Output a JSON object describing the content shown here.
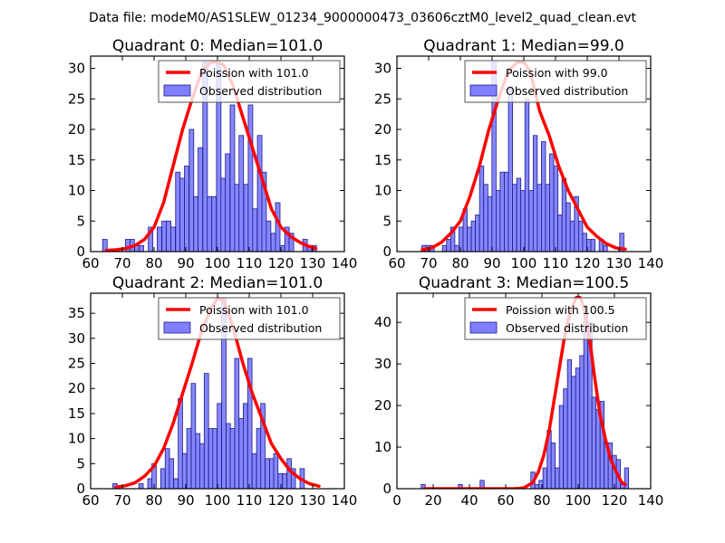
{
  "figure": {
    "suptitle": "Data file: modeM0/AS1SLEW_01234_9000000473_03606cztM0_level2_quad_clean.evt"
  },
  "colors": {
    "bar_fill": "#7f7fff",
    "bar_edge": "#1c1c8a",
    "poisson_line": "#ff0000",
    "legend_edge": "#555555"
  },
  "chart_data": [
    {
      "type": "bar",
      "title": "Quadrant 0: Median=101.0",
      "xlabel": "",
      "ylabel": "",
      "xlim": [
        60,
        140
      ],
      "ylim": [
        0,
        32
      ],
      "xticks": [
        60,
        70,
        80,
        90,
        100,
        110,
        120,
        130,
        140
      ],
      "yticks": [
        0,
        5,
        10,
        15,
        20,
        25,
        30
      ],
      "legend": {
        "placement": "top-right",
        "entries": [
          "Poission with 101.0",
          "Observed distribution"
        ]
      },
      "bin_width": 1.43,
      "bars": {
        "x": [
          64.5,
          66,
          67.4,
          68.8,
          70.3,
          71.7,
          73.1,
          74.6,
          76,
          77.4,
          78.9,
          80.3,
          81.7,
          83.2,
          84.6,
          86,
          87.5,
          88.9,
          90.3,
          91.8,
          93.2,
          94.6,
          96.1,
          97.5,
          98.9,
          100.4,
          101.8,
          103.2,
          104.7,
          106.1,
          107.5,
          109,
          110.4,
          111.8,
          113.3,
          114.7,
          116.1,
          117.6,
          119,
          120.4,
          121.9,
          123.3,
          124.7,
          126.2,
          127.6,
          129,
          130.5
        ],
        "values": [
          2,
          0,
          0,
          0,
          0,
          2,
          2,
          1,
          1,
          0,
          4,
          0,
          4,
          5,
          5,
          4,
          13,
          12,
          14,
          20,
          9,
          17,
          31,
          9,
          9,
          31,
          12,
          16,
          24,
          11,
          19,
          11,
          24,
          7,
          19,
          13,
          5,
          3,
          8,
          1,
          4,
          3,
          0,
          0,
          2,
          1,
          1
        ]
      },
      "poisson_series": {
        "name": "Poission with 101.0",
        "x": [
          65,
          68,
          71,
          74,
          77,
          80,
          83,
          86,
          89,
          92,
          95,
          98,
          100,
          102,
          105,
          108,
          111,
          114,
          117,
          120,
          123,
          126,
          129,
          131
        ],
        "values": [
          0.2,
          0.3,
          0.5,
          1,
          2,
          4,
          8,
          14,
          20,
          25,
          29.5,
          31,
          31,
          30.5,
          27,
          22,
          17,
          12,
          7,
          4,
          2.5,
          1.5,
          0.8,
          0.5
        ]
      }
    },
    {
      "type": "bar",
      "title": "Quadrant 1: Median=99.0",
      "xlabel": "",
      "ylabel": "",
      "xlim": [
        60,
        140
      ],
      "ylim": [
        0,
        32
      ],
      "xticks": [
        60,
        70,
        80,
        90,
        100,
        110,
        120,
        130,
        140
      ],
      "yticks": [
        0,
        5,
        10,
        15,
        20,
        25,
        30
      ],
      "legend": {
        "placement": "top-right",
        "entries": [
          "Poission with 99.0",
          "Observed distribution"
        ]
      },
      "bin_width": 1.3,
      "bars": {
        "x": [
          68.5,
          69.8,
          71.1,
          72.4,
          73.7,
          75,
          76.3,
          77.6,
          78.9,
          80.2,
          81.5,
          82.8,
          84.1,
          85.4,
          86.7,
          88,
          89.3,
          90.6,
          91.9,
          93.2,
          94.5,
          95.8,
          97.1,
          98.4,
          99.7,
          101,
          102.3,
          103.6,
          104.9,
          106.2,
          107.5,
          108.8,
          110.1,
          111.4,
          112.7,
          114,
          115.3,
          116.6,
          117.9,
          119.2,
          120.5,
          121.8,
          123.1,
          124.4,
          125.7,
          127,
          128.3,
          129.6,
          130.9
        ],
        "values": [
          1,
          1,
          1,
          0,
          0,
          1,
          2,
          4,
          1,
          4,
          7,
          4,
          5,
          6,
          14,
          11,
          9,
          31,
          10,
          13,
          13,
          27,
          11,
          12,
          10,
          25,
          10,
          19,
          11,
          18,
          11,
          16,
          14,
          6,
          12,
          8,
          5,
          9,
          5,
          3,
          2,
          2,
          0,
          2,
          1,
          0,
          0,
          0,
          3
        ]
      },
      "poisson_series": {
        "name": "Poission with 99.0",
        "x": [
          68,
          71,
          74,
          77,
          80,
          83,
          86,
          89,
          92,
          95,
          98,
          100,
          102,
          105,
          108,
          111,
          114,
          117,
          120,
          123,
          126,
          129,
          132
        ],
        "values": [
          0.3,
          0.6,
          1.5,
          3,
          5,
          9,
          14,
          20,
          25,
          29.5,
          31,
          31,
          29.5,
          23,
          19,
          14,
          10,
          7,
          4,
          2.5,
          1.3,
          0.6,
          0.4
        ]
      }
    },
    {
      "type": "bar",
      "title": "Quadrant 2: Median=101.0",
      "xlabel": "",
      "ylabel": "",
      "xlim": [
        60,
        140
      ],
      "ylim": [
        0,
        39
      ],
      "xticks": [
        60,
        70,
        80,
        90,
        100,
        110,
        120,
        130,
        140
      ],
      "yticks": [
        0,
        5,
        10,
        15,
        20,
        25,
        30,
        35
      ],
      "legend": {
        "placement": "top-right",
        "entries": [
          "Poission with 101.0",
          "Observed distribution"
        ]
      },
      "bin_width": 1.37,
      "bars": {
        "x": [
          67.7,
          69.1,
          70.4,
          71.8,
          73.2,
          74.6,
          75.9,
          77.3,
          78.7,
          80,
          81.4,
          82.8,
          84.2,
          85.5,
          86.9,
          88.3,
          89.6,
          91,
          92.4,
          93.8,
          95.1,
          96.5,
          97.9,
          99.2,
          100.6,
          102,
          103.4,
          104.7,
          106.1,
          107.5,
          108.8,
          110.2,
          111.6,
          113,
          114.3,
          115.7,
          117.1,
          118.4,
          119.8,
          121.2,
          122.6,
          123.9,
          125.3,
          126.7
        ],
        "values": [
          1,
          0,
          0,
          0,
          0,
          0,
          1,
          0,
          2,
          5,
          0,
          4,
          8,
          6,
          2,
          18,
          7,
          12,
          21,
          11,
          9,
          23,
          12,
          12,
          17,
          38,
          13,
          12,
          26,
          14,
          17,
          26,
          7,
          12,
          17,
          6,
          6,
          7,
          3,
          3,
          6,
          4,
          0,
          4
        ]
      },
      "poisson_series": {
        "name": "Poission with 101.0",
        "x": [
          68,
          71,
          74,
          77,
          80,
          83,
          86,
          89,
          92,
          95,
          98,
          100,
          102,
          105,
          108,
          111,
          114,
          117,
          120,
          123,
          126,
          129,
          132
        ],
        "values": [
          0.3,
          0.6,
          1.2,
          2.5,
          4.5,
          8,
          13,
          19,
          25,
          31.5,
          36,
          38,
          37.5,
          32,
          25,
          19,
          14,
          9,
          6,
          3.5,
          2,
          1,
          0.5
        ]
      }
    },
    {
      "type": "bar",
      "title": "Quadrant 3: Median=100.5",
      "xlabel": "",
      "ylabel": "",
      "xlim": [
        0,
        140
      ],
      "ylim": [
        0,
        47
      ],
      "xticks": [
        0,
        20,
        40,
        60,
        80,
        100,
        120,
        140
      ],
      "yticks": [
        0,
        10,
        20,
        30,
        40
      ],
      "legend": {
        "placement": "top-right",
        "entries": [
          "Poission with 100.5",
          "Observed distribution"
        ]
      },
      "bin_width": 2.25,
      "bars": {
        "x": [
          14.5,
          35,
          47,
          75,
          77.2,
          79.5,
          81.7,
          84,
          86.2,
          88.5,
          90.7,
          93,
          95.2,
          97.5,
          99.7,
          102,
          104.2,
          106.5,
          108.7,
          111,
          113.2,
          115.5,
          117.7,
          120,
          122.2,
          124.5,
          126.7
        ],
        "values": [
          1,
          1,
          2,
          4,
          1,
          2,
          5,
          14,
          11,
          5,
          20,
          24,
          31,
          27,
          29,
          32,
          44,
          40,
          22,
          19,
          21,
          11,
          11,
          8,
          7,
          1,
          5
        ]
      },
      "poisson_series": {
        "name": "Poission with 100.5",
        "x": [
          15,
          30,
          50,
          65,
          70,
          75,
          78,
          81,
          84,
          87,
          90,
          93,
          96,
          99,
          101,
          103,
          106,
          109,
          112,
          115,
          118,
          121,
          124,
          126
        ],
        "values": [
          0,
          0,
          0,
          0,
          0.2,
          1.5,
          4,
          8,
          14,
          22,
          30,
          38,
          43,
          46,
          46,
          44,
          37,
          27,
          18,
          12,
          7,
          4,
          1.5,
          1
        ]
      }
    }
  ]
}
